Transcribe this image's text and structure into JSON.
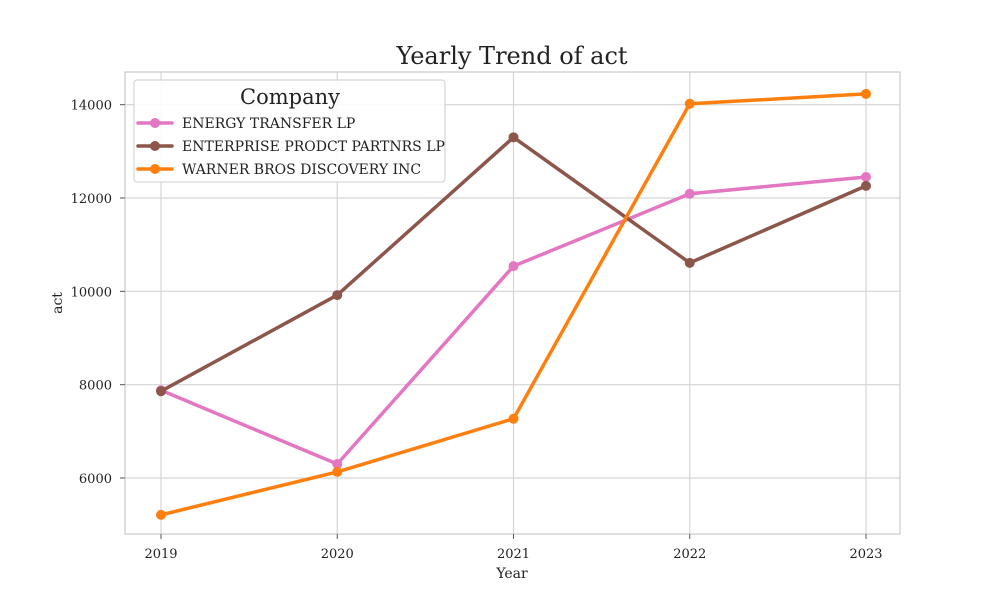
{
  "chart_data": {
    "type": "line",
    "title": "Yearly Trend of act",
    "xlabel": "Year",
    "ylabel": "act",
    "x": [
      "2019",
      "2020",
      "2021",
      "2022",
      "2023"
    ],
    "ylim": [
      4800,
      14700
    ],
    "yticks": [
      6000,
      8000,
      10000,
      12000,
      14000
    ],
    "grid": true,
    "legend": {
      "title": "Company",
      "placement": "top-left"
    },
    "series": [
      {
        "name": "ENERGY TRANSFER LP",
        "color": "#e377c2",
        "values": [
          7880,
          6300,
          10540,
          12090,
          12450
        ]
      },
      {
        "name": "ENTERPRISE PRODCT PARTNRS LP",
        "color": "#8c564b",
        "values": [
          7860,
          9920,
          13300,
          10610,
          12260
        ]
      },
      {
        "name": "WARNER BROS DISCOVERY INC",
        "color": "#ff7f0e",
        "values": [
          5210,
          6130,
          7270,
          14020,
          14230
        ]
      }
    ]
  }
}
